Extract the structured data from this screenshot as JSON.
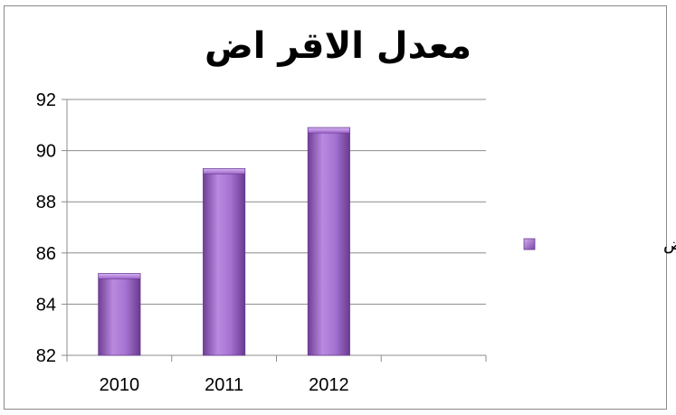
{
  "chart_data": {
    "type": "bar",
    "title": "معدل الاقر اض",
    "categories": [
      "2010",
      "2011",
      "2012",
      ""
    ],
    "series": [
      {
        "name": "معدل الاقر اض",
        "values": [
          85.2,
          89.3,
          90.9,
          null
        ]
      }
    ],
    "ylim": [
      82,
      92
    ],
    "yticks": [
      "82",
      "84",
      "86",
      "88",
      "90",
      "92"
    ],
    "grid": true,
    "legend_placement": "right",
    "bar_color": "#9c62c8"
  }
}
